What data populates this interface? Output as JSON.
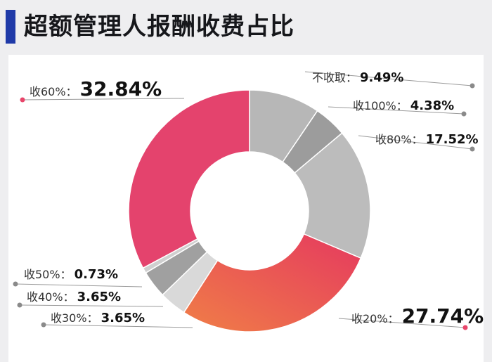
{
  "title": "超额管理人报酬收费占比",
  "chart_data": {
    "type": "pie",
    "donut": true,
    "slices": [
      {
        "label": "不收取：",
        "value": 9.49,
        "display": "9.49%",
        "color": "#b7b7b7"
      },
      {
        "label": "收100%：",
        "value": 4.38,
        "display": "4.38%",
        "color": "#9c9c9c"
      },
      {
        "label": "收80%：",
        "value": 17.52,
        "display": "17.52%",
        "color": "#bcbcbc"
      },
      {
        "label": "收20%：",
        "value": 27.74,
        "display": "27.74%",
        "color": "#e8456a"
      },
      {
        "label": "收30%：",
        "value": 3.65,
        "display": "3.65%",
        "color": "#d9d9d9"
      },
      {
        "label": "收40%：",
        "value": 3.65,
        "display": "3.65%",
        "color": "#a0a0a0"
      },
      {
        "label": "收50%：",
        "value": 0.73,
        "display": "0.73%",
        "color": "#cfcfcf"
      },
      {
        "label": "收60%：",
        "value": 32.84,
        "display": "32.84%",
        "color": "#e4436d"
      }
    ]
  }
}
